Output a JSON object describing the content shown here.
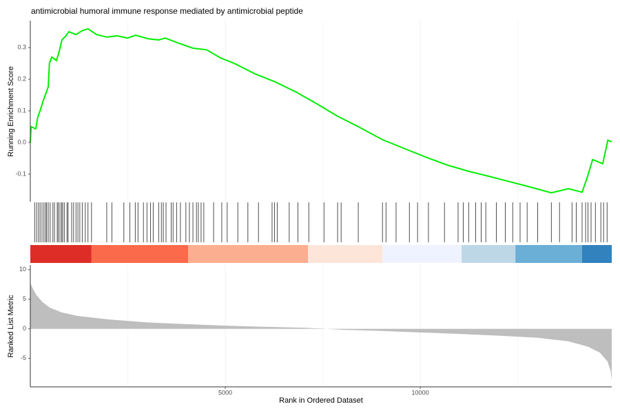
{
  "chart_data": [
    {
      "type": "line",
      "title": "antimicrobial humoral immune response mediated by antimicrobial peptide",
      "ylabel": "Running Enrichment Score",
      "color": "#00ee00",
      "x": [
        0,
        20,
        140,
        190,
        250,
        320,
        390,
        460,
        490,
        550,
        670,
        740,
        810,
        900,
        990,
        1170,
        1340,
        1480,
        1700,
        1960,
        2230,
        2490,
        2700,
        3020,
        3290,
        3460,
        3820,
        4170,
        4520,
        4880,
        5230,
        5760,
        6290,
        6820,
        7350,
        7880,
        8410,
        9030,
        9650,
        10180,
        10710,
        11240,
        11770,
        12300,
        12830,
        13360,
        13800,
        14150,
        14280,
        14420,
        14680,
        14810,
        14910
      ],
      "values": [
        0,
        0.05,
        0.043,
        0.08,
        0.1,
        0.128,
        0.152,
        0.176,
        0.25,
        0.27,
        0.259,
        0.287,
        0.324,
        0.335,
        0.35,
        0.341,
        0.354,
        0.359,
        0.341,
        0.333,
        0.337,
        0.33,
        0.339,
        0.328,
        0.324,
        0.33,
        0.313,
        0.298,
        0.293,
        0.267,
        0.25,
        0.217,
        0.191,
        0.159,
        0.122,
        0.083,
        0.05,
        0.009,
        -0.022,
        -0.048,
        -0.072,
        -0.091,
        -0.107,
        -0.124,
        -0.141,
        -0.159,
        -0.146,
        -0.157,
        -0.111,
        -0.054,
        -0.067,
        0.007,
        0.002
      ],
      "xlim": [
        0,
        14910
      ],
      "xticks": [
        5000,
        10000
      ],
      "xgrid_minor": [
        2500,
        7500,
        12500
      ],
      "ylim": [
        -0.187,
        0.385
      ],
      "yticks": [
        -0.1,
        {
          "value": 0,
          "label": "0.0"
        },
        0.1,
        0.2,
        0.3
      ]
    },
    {
      "type": "rug",
      "color": "#000000",
      "x": [
        110,
        160,
        210,
        250,
        300,
        350,
        390,
        420,
        460,
        510,
        580,
        620,
        690,
        720,
        760,
        800,
        830,
        870,
        940,
        970,
        1060,
        1110,
        1170,
        1220,
        1270,
        1330,
        1410,
        1480,
        1570,
        1960,
        2090,
        2400,
        2550,
        2690,
        2760,
        2900,
        2990,
        3080,
        3150,
        3290,
        3360,
        3410,
        3480,
        3610,
        3660,
        3750,
        3850,
        3990,
        4080,
        4170,
        4260,
        4310,
        4380,
        4450,
        4700,
        4910,
        5050,
        5320,
        5580,
        5850,
        6200,
        6260,
        6330,
        6640,
        6860,
        7140,
        7530,
        7880,
        7970,
        8410,
        9030,
        9120,
        9380,
        9720,
        9930,
        10210,
        10620,
        10970,
        11100,
        11240,
        11420,
        11560,
        11680,
        11950,
        12180,
        12370,
        12560,
        12740,
        13010,
        13360,
        13570,
        13890,
        14000,
        14150,
        14240,
        14300,
        14380,
        14490,
        14630,
        14700,
        14790
      ],
      "xlim": [
        0,
        14910
      ],
      "xticks": [
        5000,
        10000
      ],
      "xgrid_minor": [
        2500,
        7500,
        12500
      ],
      "band_edges": [
        0,
        1570,
        4050,
        7120,
        9030,
        11060,
        12440,
        14150,
        14910
      ],
      "band_colors": [
        "#de2d26",
        "#fb6a4a",
        "#fcae91",
        "#fee5d9",
        "#eff3ff",
        "#bdd7e7",
        "#6baed6",
        "#3182bd"
      ]
    },
    {
      "type": "area",
      "ylabel": "Ranked List Metric",
      "xlabel": "Rank in Ordered Dataset",
      "color": "#bebebe",
      "x": [
        0,
        50,
        150,
        300,
        500,
        800,
        1200,
        2000,
        3000,
        4000,
        5000,
        6000,
        7000,
        7500,
        7600,
        8000,
        9000,
        10000,
        11000,
        12000,
        13000,
        13800,
        14300,
        14600,
        14800,
        14880,
        14910
      ],
      "values": [
        7.8,
        7,
        5.8,
        4.6,
        3.6,
        2.8,
        2.2,
        1.6,
        1.1,
        0.8,
        0.55,
        0.35,
        0.2,
        0.05,
        0,
        -0.15,
        -0.35,
        -0.6,
        -0.85,
        -1.15,
        -1.5,
        -2.1,
        -3,
        -4,
        -5.5,
        -7,
        -8.7
      ],
      "xlim": [
        0,
        14910
      ],
      "xticks": [
        5000,
        10000
      ],
      "xgrid_minor": [
        2500,
        7500,
        12500
      ],
      "ylim": [
        -9.8,
        10.8
      ],
      "yticks": [
        -5,
        0,
        5,
        10
      ]
    }
  ]
}
